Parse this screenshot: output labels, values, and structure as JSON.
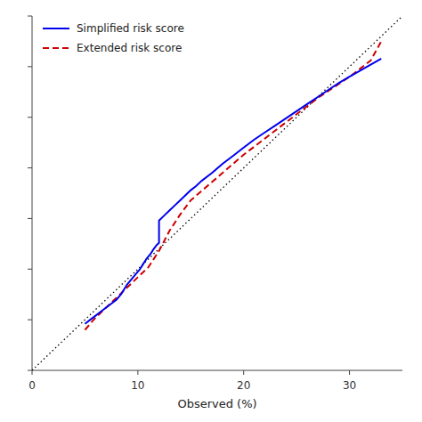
{
  "chart_data": {
    "type": "line",
    "xlabel": "Observed (%)",
    "xlim": [
      0,
      35
    ],
    "ylim": [
      0,
      35
    ],
    "xticks": [
      0,
      10,
      20,
      30
    ],
    "yticks": [
      0,
      5,
      10,
      15,
      20,
      25,
      30,
      35
    ],
    "tick_labels": "x",
    "grid": false,
    "legend": "upper left",
    "series": [
      {
        "color": "#000000",
        "line_style": "dotted",
        "x": [
          0,
          35
        ],
        "values": [
          0,
          35
        ]
      },
      {
        "name": "Extended risk score",
        "color": "#cc0000",
        "line_style": "dashed",
        "x": [
          5.0,
          6.0,
          7.0,
          8.0,
          9.0,
          10.0,
          11.0,
          11.5,
          12.0,
          12.5,
          13.0,
          13.5,
          14.0,
          14.5,
          15.0,
          16.0,
          17.0,
          18.0,
          19.0,
          20.0,
          21.0,
          22.0,
          23.0,
          24.0,
          25.0,
          26.0,
          27.0,
          28.0,
          29.0,
          30.0,
          31.0,
          32.0,
          33.0
        ],
        "values": [
          4.0,
          5.2,
          6.2,
          7.2,
          8.2,
          9.2,
          10.2,
          11.0,
          11.8,
          12.8,
          13.8,
          14.6,
          15.4,
          16.1,
          16.8,
          17.7,
          18.6,
          19.5,
          20.4,
          21.3,
          22.1,
          22.9,
          23.7,
          24.5,
          25.3,
          26.1,
          26.9,
          27.6,
          28.3,
          29.0,
          29.8,
          30.6,
          32.5
        ]
      },
      {
        "name": "Simplified risk score",
        "color": "#0000ee",
        "line_style": "solid",
        "x": [
          5.0,
          5.5,
          6.0,
          6.5,
          7.0,
          7.5,
          8.0,
          8.4,
          8.7,
          9.0,
          9.4,
          9.8,
          10.2,
          10.5,
          10.8,
          11.2,
          11.5,
          11.8,
          12.0,
          12.0,
          12.0,
          12.4,
          13.0,
          13.5,
          14.0,
          14.5,
          15.0,
          15.5,
          16.0,
          17.0,
          18.0,
          19.0,
          20.0,
          21.0,
          22.0,
          23.0,
          24.0,
          25.0,
          26.0,
          27.0,
          28.0,
          29.0,
          30.0,
          31.0,
          32.0,
          33.0
        ],
        "values": [
          4.6,
          5.0,
          5.4,
          5.8,
          6.2,
          6.6,
          7.0,
          7.5,
          8.0,
          8.5,
          9.0,
          9.5,
          10.0,
          10.5,
          11.0,
          11.5,
          12.0,
          12.4,
          12.6,
          14.6,
          14.8,
          15.2,
          15.8,
          16.3,
          16.8,
          17.3,
          17.8,
          18.2,
          18.7,
          19.5,
          20.4,
          21.2,
          22.0,
          22.8,
          23.5,
          24.2,
          24.9,
          25.6,
          26.3,
          27.0,
          27.7,
          28.4,
          29.0,
          29.6,
          30.2,
          30.8
        ]
      }
    ]
  }
}
